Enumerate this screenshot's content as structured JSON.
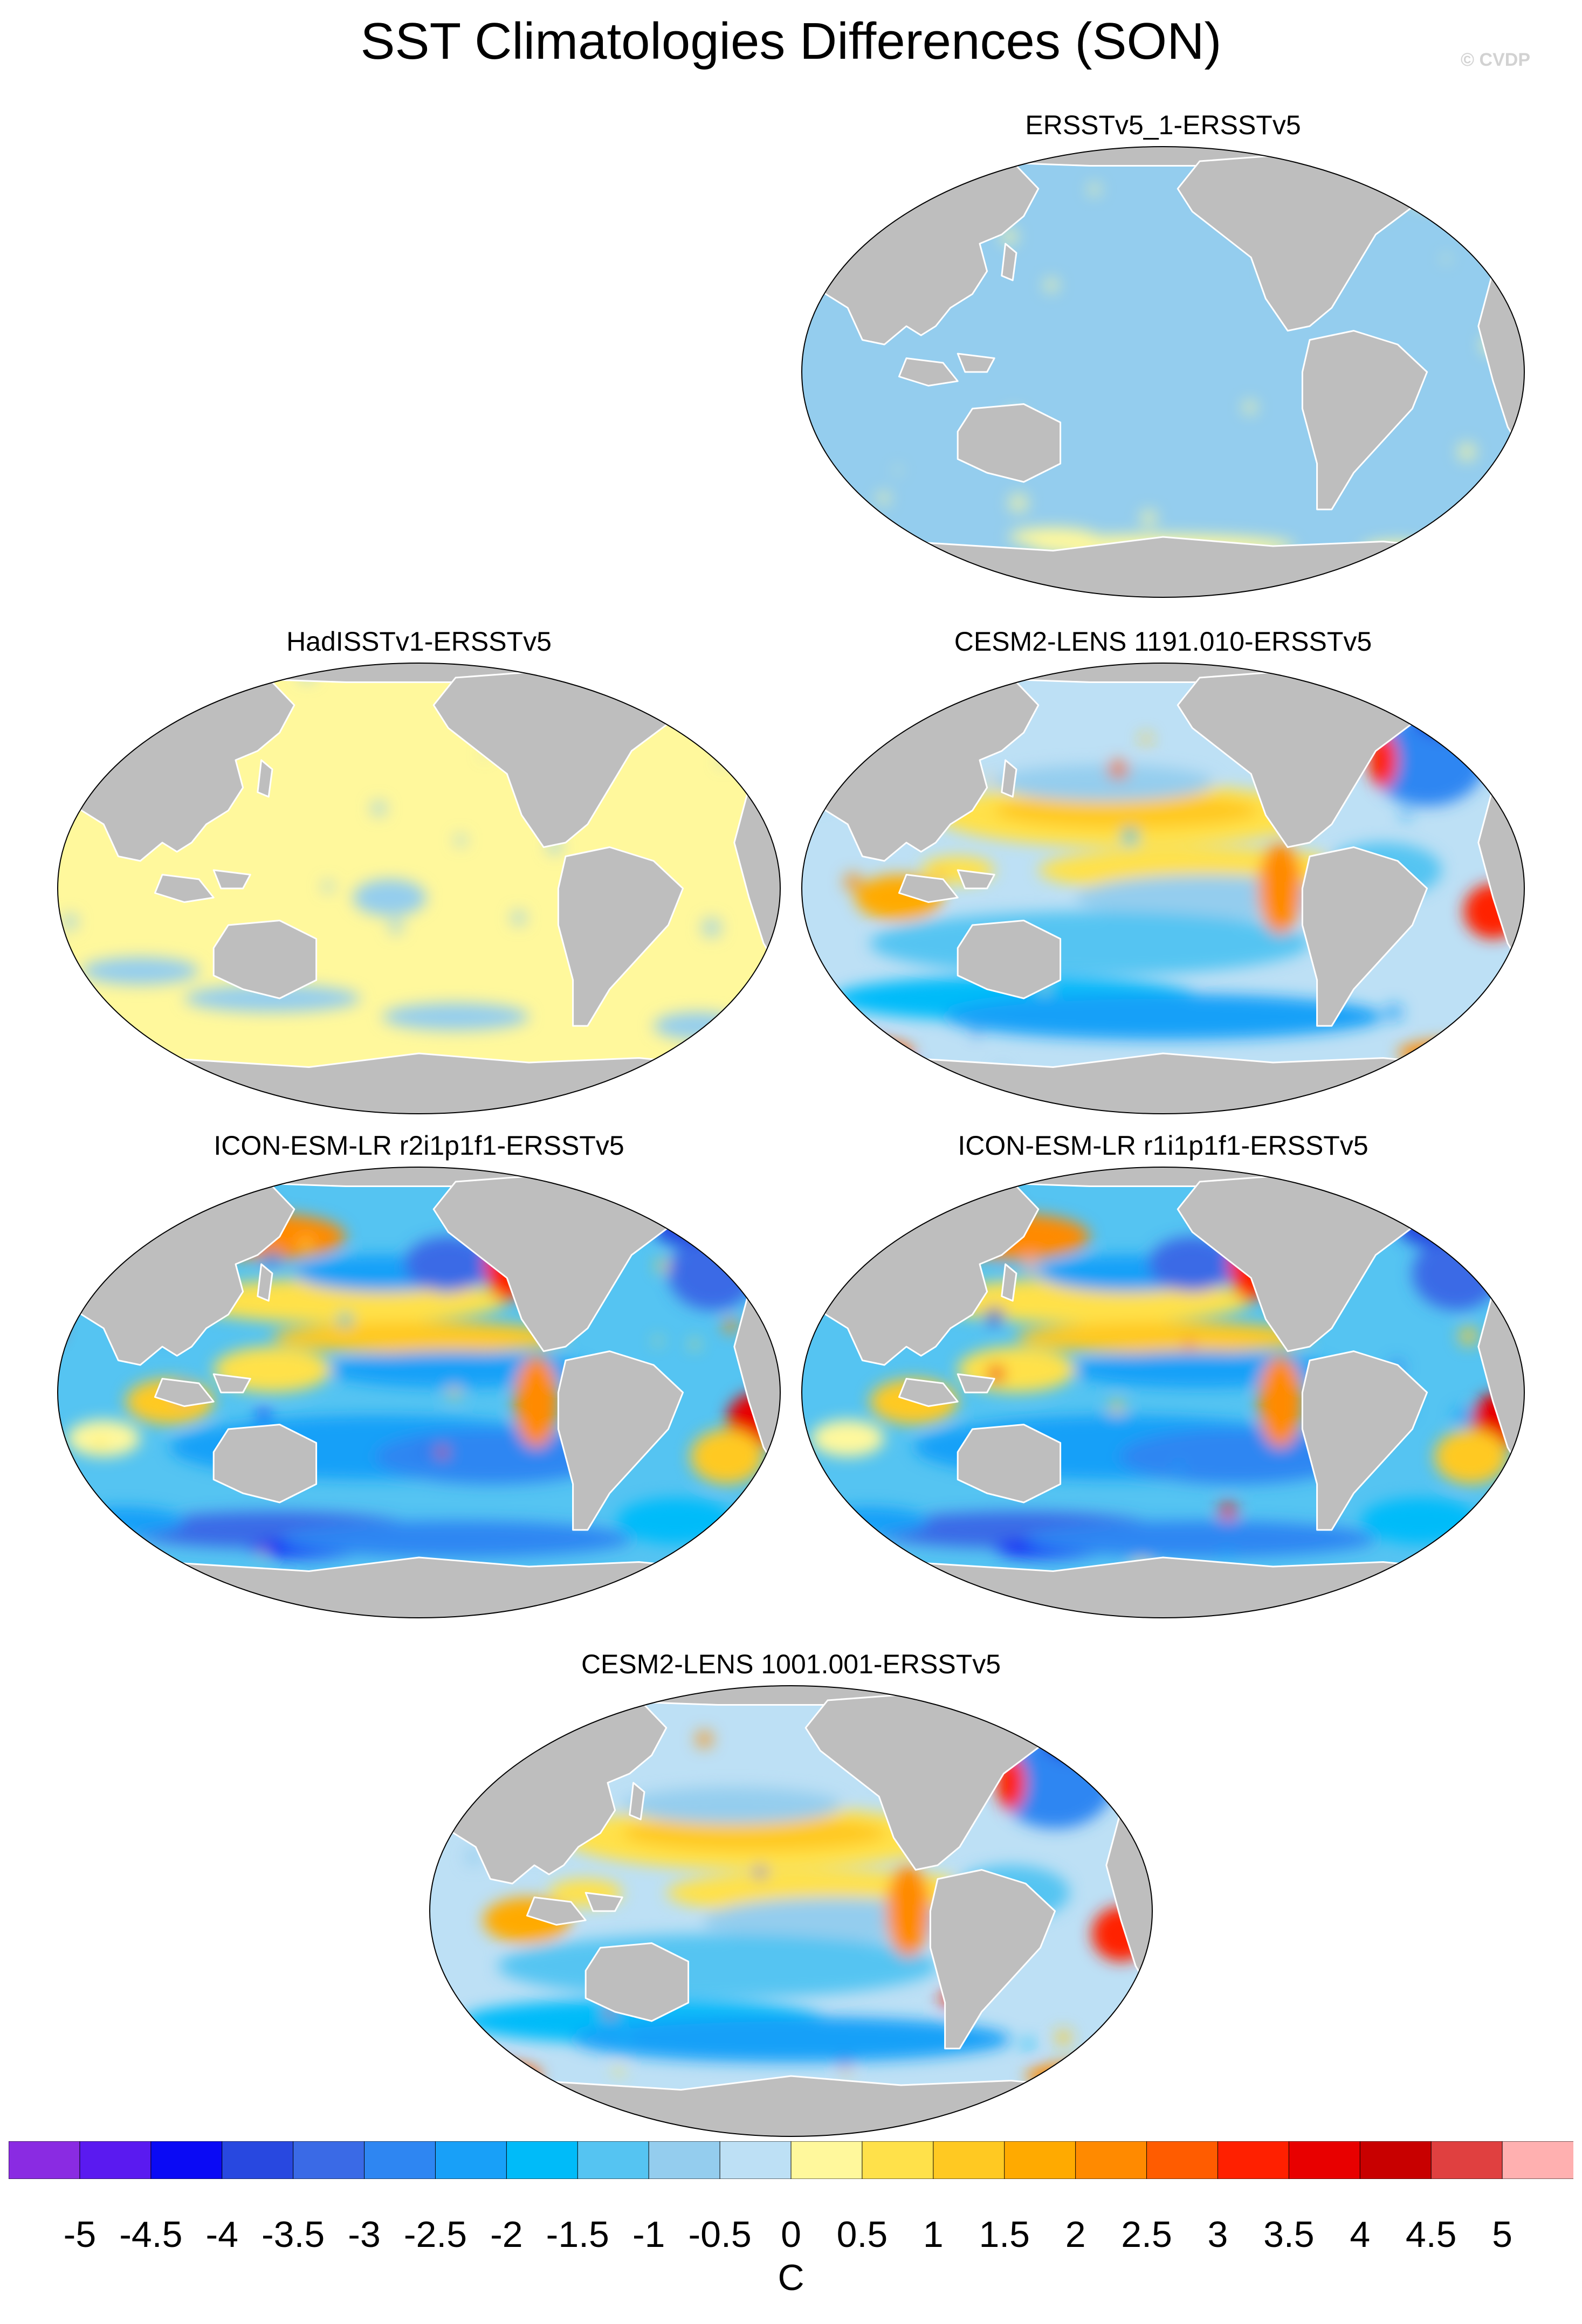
{
  "title": "SST Climatologies Differences (SON)",
  "watermark": "© CVDP",
  "panels": [
    {
      "id": "p1",
      "label": "ERSSTv5_1-ERSSTv5",
      "style": "near-zero-cool"
    },
    {
      "id": "p2",
      "label": "HadISSTv1-ERSSTv5",
      "style": "near-zero-warm"
    },
    {
      "id": "p3",
      "label": "CESM2-LENS 1191.010-ERSSTv5",
      "style": "model-cesm"
    },
    {
      "id": "p4",
      "label": "ICON-ESM-LR r2i1p1f1-ERSSTv5",
      "style": "model-icon"
    },
    {
      "id": "p5",
      "label": "ICON-ESM-LR r1i1p1f1-ERSSTv5",
      "style": "model-icon"
    },
    {
      "id": "p6",
      "label": "CESM2-LENS 1001.001-ERSSTv5",
      "style": "model-cesm"
    }
  ],
  "colorbar": {
    "units": "C",
    "labels": [
      "-5",
      "-4.5",
      "-4",
      "-3.5",
      "-3",
      "-2.5",
      "-2",
      "-1.5",
      "-1",
      "-0.5",
      "0",
      "0.5",
      "1",
      "1.5",
      "2",
      "2.5",
      "3",
      "3.5",
      "4",
      "4.5",
      "5"
    ],
    "colors": [
      "#8a2be2",
      "#5a1af0",
      "#0a0af5",
      "#2848e0",
      "#3a6ae6",
      "#2e86f2",
      "#18a0f8",
      "#00bbf9",
      "#55c4f2",
      "#94cdee",
      "#bde0f5",
      "#fff89c",
      "#ffe14a",
      "#ffc922",
      "#ffaa00",
      "#ff8a00",
      "#ff5c00",
      "#ff2000",
      "#e80000",
      "#c80000",
      "#e04040",
      "#ffb0b0"
    ]
  },
  "land_color": "#bebebe"
}
